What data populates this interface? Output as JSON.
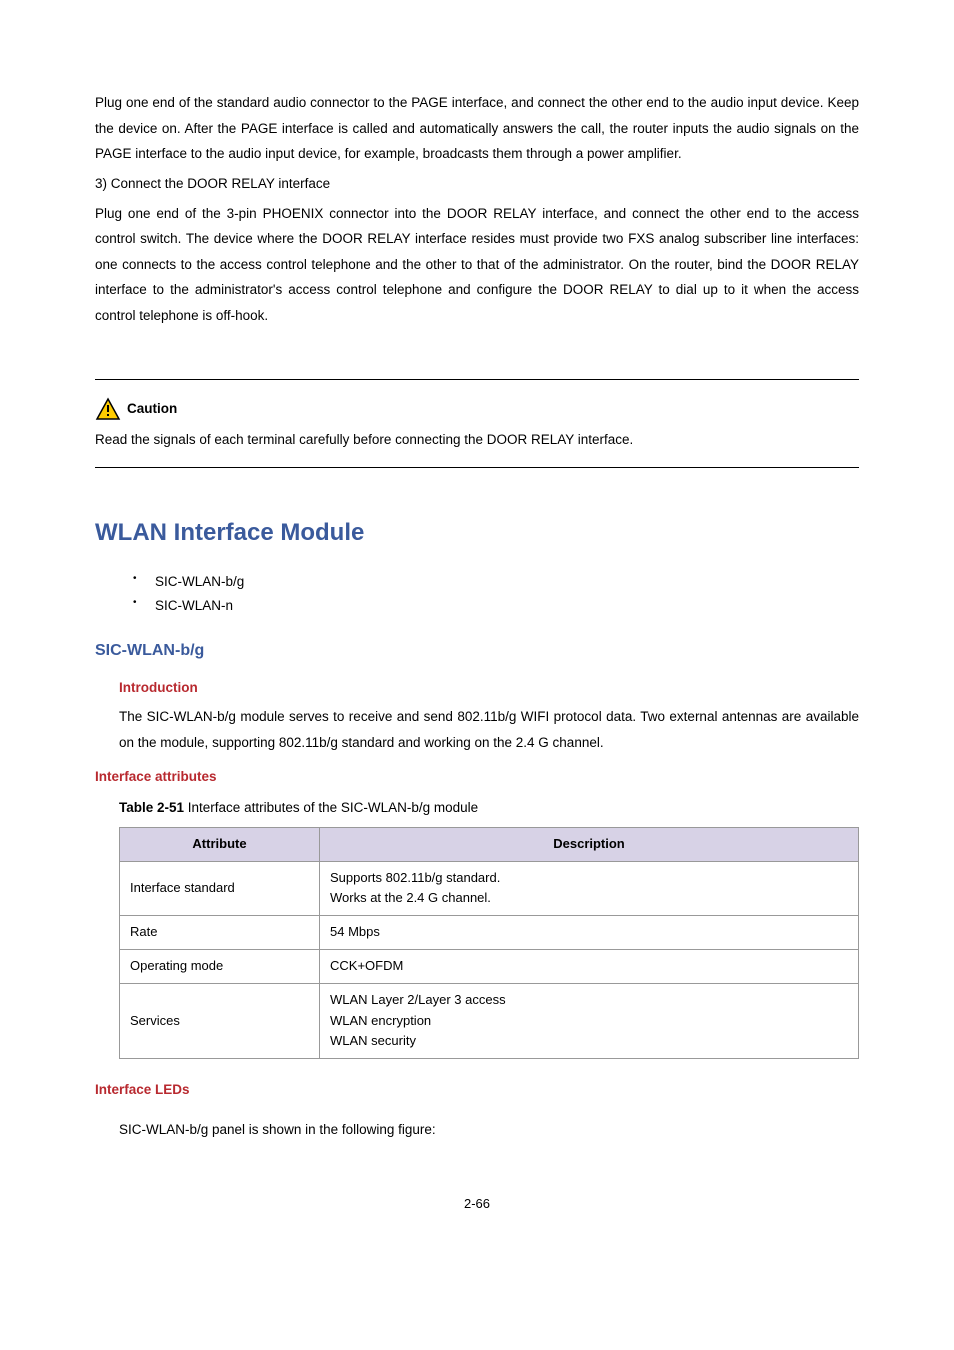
{
  "top": {
    "para1": "Plug one end of the standard audio connector to the PAGE interface, and connect the other end to the audio input device. Keep the device on. After the PAGE interface is called and automatically answers the call, the router inputs the audio signals on the PAGE interface to the audio input device, for example, broadcasts them through a power amplifier.",
    "numbered": "3)    Connect the DOOR RELAY interface",
    "para2": "Plug one end of the 3-pin PHOENIX connector into the DOOR RELAY interface, and connect the other end to the access control switch. The device where the DOOR RELAY interface resides must provide two FXS analog subscriber line interfaces: one connects to the access control telephone and the other to that of the administrator. On the router, bind the DOOR RELAY interface to the administrator's access control telephone and configure the DOOR RELAY to dial up to it when the access control telephone is off-hook."
  },
  "caution": {
    "label": "Caution",
    "text": "Read the signals of each terminal carefully before connecting the DOOR RELAY interface.",
    "icon_stroke": "#000000",
    "icon_fill": "#ffcc00",
    "icon_mark": "#000000"
  },
  "section": {
    "title": "WLAN Interface Module",
    "bullets": [
      "SIC-WLAN-b/g",
      "SIC-WLAN-n"
    ]
  },
  "sub": {
    "title": "SIC-WLAN-b/g",
    "intro_h": "Introduction",
    "intro_text": "The SIC-WLAN-b/g module serves to receive and send 802.11b/g WIFI protocol data. Two external antennas are available on the module, supporting 802.11b/g standard and working on the 2.4 G channel.",
    "attr_h": "Interface attributes",
    "table_caption_b": "Table 2-51",
    "table_caption_rest": " Interface attributes of the SIC-WLAN-b/g module",
    "table": {
      "header_bg": "#d7d2e6",
      "border_color": "#999999",
      "col_attr": "Attribute",
      "col_desc": "Description",
      "rows": [
        {
          "a": "Interface standard",
          "d": "Supports 802.11b/g standard.\nWorks at the 2.4 G channel."
        },
        {
          "a": "Rate",
          "d": "54 Mbps"
        },
        {
          "a": "Operating mode",
          "d": "CCK+OFDM"
        },
        {
          "a": "Services",
          "d": "WLAN Layer 2/Layer 3 access\nWLAN encryption\nWLAN security"
        }
      ]
    },
    "leds_h": "Interface LEDs",
    "leds_text": "SIC-WLAN-b/g panel is shown in the following figure:"
  },
  "pagenum": "2-66",
  "colors": {
    "heading_blue": "#3a5a9c",
    "heading_red": "#b8292f"
  }
}
